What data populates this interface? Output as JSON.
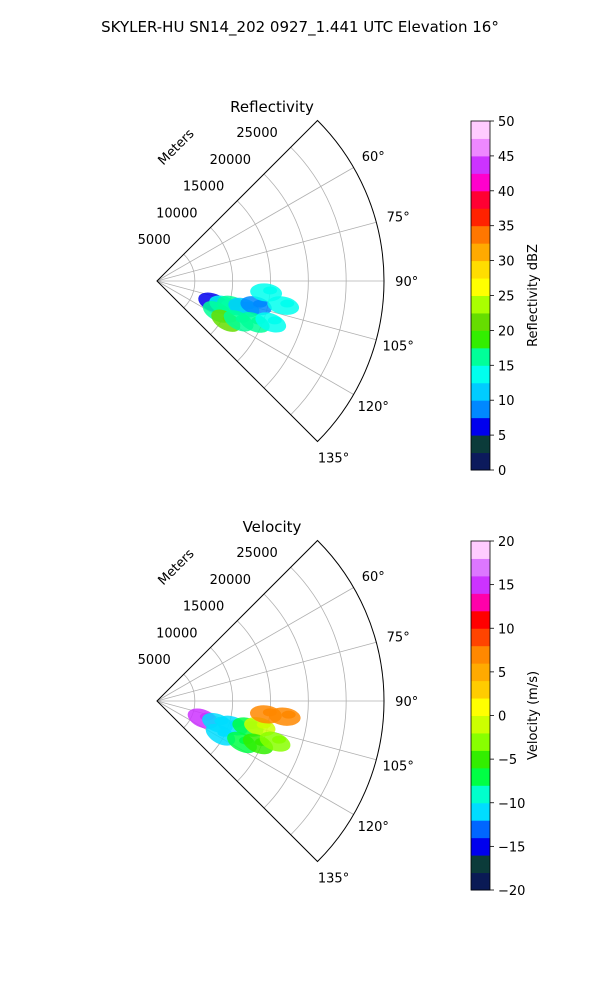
{
  "figure": {
    "title": "SKYLER-HU  SN14_202  0927_1.441 UTC Elevation 16°"
  },
  "chart_data": [
    {
      "type": "heatmap",
      "subtype": "polar-sector (PPI radar sweep)",
      "title": "Reflectivity",
      "range_label": "Meters",
      "range_ticks": [
        5000,
        10000,
        15000,
        20000,
        25000
      ],
      "range_max": 30000,
      "angle_ticks": [
        "60°",
        "75°",
        "90°",
        "105°",
        "120°",
        "135°"
      ],
      "angle_range_deg": [
        45,
        135
      ],
      "colorbar": {
        "label": "Reflectivity dBZ",
        "min": 0,
        "max": 50,
        "ticks": [
          "0",
          "5",
          "10",
          "15",
          "20",
          "25",
          "30",
          "35",
          "40",
          "45",
          "50"
        ]
      },
      "echoes": [
        {
          "azimuth_deg": 111,
          "range_m": 8000,
          "value": 7
        },
        {
          "azimuth_deg": 110,
          "range_m": 9500,
          "value": 14
        },
        {
          "azimuth_deg": 108,
          "range_m": 10500,
          "value": 17
        },
        {
          "azimuth_deg": 107,
          "range_m": 12000,
          "value": 11
        },
        {
          "azimuth_deg": 104,
          "range_m": 13500,
          "value": 8
        },
        {
          "azimuth_deg": 117,
          "range_m": 9000,
          "value": 16
        },
        {
          "azimuth_deg": 120,
          "range_m": 10500,
          "value": 21
        },
        {
          "azimuth_deg": 116,
          "range_m": 12000,
          "value": 17
        },
        {
          "azimuth_deg": 113,
          "range_m": 14000,
          "value": 16
        },
        {
          "azimuth_deg": 110,
          "range_m": 16000,
          "value": 13
        },
        {
          "azimuth_deg": 101,
          "range_m": 17000,
          "value": 13
        },
        {
          "azimuth_deg": 96,
          "range_m": 14500,
          "value": 13
        }
      ]
    },
    {
      "type": "heatmap",
      "subtype": "polar-sector (PPI radar sweep)",
      "title": "Velocity",
      "range_label": "Meters",
      "range_ticks": [
        5000,
        10000,
        15000,
        20000,
        25000
      ],
      "range_max": 30000,
      "angle_ticks": [
        "60°",
        "75°",
        "90°",
        "105°",
        "120°",
        "135°"
      ],
      "angle_range_deg": [
        45,
        135
      ],
      "colorbar": {
        "label": "Velocity (m/s)",
        "min": -20,
        "max": 20,
        "ticks": [
          "−20",
          "−15",
          "−10",
          "−5",
          "0",
          "5",
          "10",
          "15",
          "20"
        ]
      },
      "echoes": [
        {
          "azimuth_deg": 111,
          "range_m": 6500,
          "value": 14
        },
        {
          "azimuth_deg": 110,
          "range_m": 8500,
          "value": -12
        },
        {
          "azimuth_deg": 108,
          "range_m": 10500,
          "value": -11
        },
        {
          "azimuth_deg": 106,
          "range_m": 12500,
          "value": -7
        },
        {
          "azimuth_deg": 104,
          "range_m": 14000,
          "value": -2
        },
        {
          "azimuth_deg": 118,
          "range_m": 9500,
          "value": -11
        },
        {
          "azimuth_deg": 116,
          "range_m": 12500,
          "value": -8
        },
        {
          "azimuth_deg": 113,
          "range_m": 14500,
          "value": -6
        },
        {
          "azimuth_deg": 109,
          "range_m": 16500,
          "value": -3
        },
        {
          "azimuth_deg": 97,
          "range_m": 14500,
          "value": 7
        },
        {
          "azimuth_deg": 97,
          "range_m": 17000,
          "value": 6
        }
      ]
    }
  ]
}
